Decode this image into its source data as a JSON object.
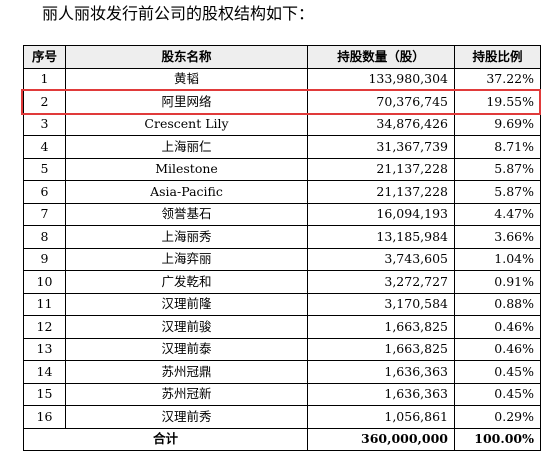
{
  "intro_text": "丽人丽妆发行前公司的股权结构如下：",
  "table": {
    "headers": {
      "seq": "序号",
      "name": "股东名称",
      "shares": "持股数量（股）",
      "ratio": "持股比例"
    },
    "rows": [
      {
        "seq": "1",
        "name": "黄韬",
        "shares": "133,980,304",
        "ratio": "37.22%"
      },
      {
        "seq": "2",
        "name": "阿里网络",
        "shares": "70,376,745",
        "ratio": "19.55%"
      },
      {
        "seq": "3",
        "name": "Crescent Lily",
        "shares": "34,876,426",
        "ratio": "9.69%"
      },
      {
        "seq": "4",
        "name": "上海丽仁",
        "shares": "31,367,739",
        "ratio": "8.71%"
      },
      {
        "seq": "5",
        "name": "Milestone",
        "shares": "21,137,228",
        "ratio": "5.87%"
      },
      {
        "seq": "6",
        "name": "Asia-Pacific",
        "shares": "21,137,228",
        "ratio": "5.87%"
      },
      {
        "seq": "7",
        "name": "领誉基石",
        "shares": "16,094,193",
        "ratio": "4.47%"
      },
      {
        "seq": "8",
        "name": "上海丽秀",
        "shares": "13,185,984",
        "ratio": "3.66%"
      },
      {
        "seq": "9",
        "name": "上海弈丽",
        "shares": "3,743,605",
        "ratio": "1.04%"
      },
      {
        "seq": "10",
        "name": "广发乾和",
        "shares": "3,272,727",
        "ratio": "0.91%"
      },
      {
        "seq": "11",
        "name": "汉理前隆",
        "shares": "3,170,584",
        "ratio": "0.88%"
      },
      {
        "seq": "12",
        "name": "汉理前骏",
        "shares": "1,663,825",
        "ratio": "0.46%"
      },
      {
        "seq": "13",
        "name": "汉理前泰",
        "shares": "1,663,825",
        "ratio": "0.46%"
      },
      {
        "seq": "14",
        "name": "苏州冠鼎",
        "shares": "1,636,363",
        "ratio": "0.45%"
      },
      {
        "seq": "15",
        "name": "苏州冠新",
        "shares": "1,636,363",
        "ratio": "0.45%"
      },
      {
        "seq": "16",
        "name": "汉理前秀",
        "shares": "1,056,861",
        "ratio": "0.29%"
      }
    ],
    "total": {
      "label": "合计",
      "shares": "360,000,000",
      "ratio": "100.00%"
    },
    "highlighted_row_seq": "2",
    "highlight_color": "#e03a3a"
  }
}
